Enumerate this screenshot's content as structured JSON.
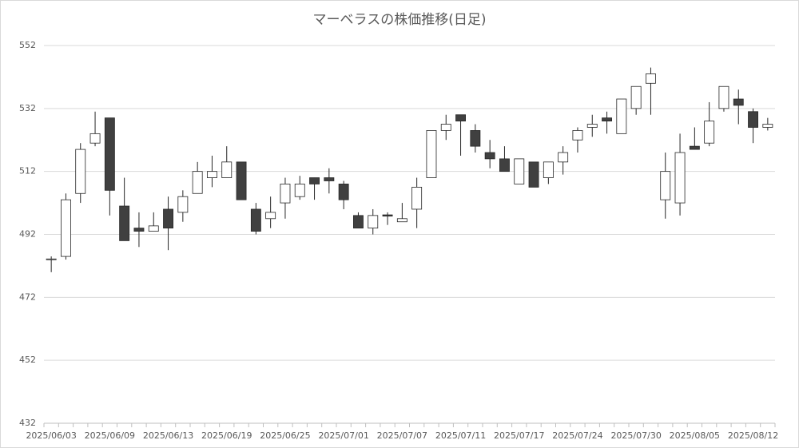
{
  "chart_data": {
    "type": "candlestick",
    "title": "マーベラスの株価推移(日足)",
    "categories": [
      "2025/06/03",
      null,
      null,
      null,
      "2025/06/09",
      null,
      null,
      null,
      "2025/06/13",
      null,
      null,
      null,
      "2025/06/19",
      null,
      null,
      null,
      "2025/06/25",
      null,
      null,
      null,
      "2025/07/01",
      null,
      null,
      null,
      "2025/07/07",
      null,
      null,
      null,
      "2025/07/11",
      null,
      null,
      null,
      "2025/07/17",
      null,
      null,
      null,
      "2025/07/24",
      null,
      null,
      null,
      "2025/07/30",
      null,
      null,
      null,
      "2025/08/05",
      null,
      null,
      null,
      "2025/08/12",
      null
    ],
    "open": [
      484,
      485,
      505,
      521,
      529,
      501,
      494,
      493,
      500,
      499,
      505,
      510,
      510,
      515,
      500,
      497,
      502,
      504,
      510,
      510,
      508,
      498,
      494,
      498.2,
      496,
      500,
      510,
      525,
      530,
      525,
      518,
      516,
      508,
      515,
      510,
      515,
      522,
      526,
      529,
      524,
      532,
      540,
      503,
      502,
      520,
      521,
      532,
      535,
      531,
      526
    ],
    "high": [
      485,
      505,
      521,
      531,
      529,
      510,
      499,
      499,
      504,
      506,
      515,
      517,
      520,
      515,
      502,
      504,
      510,
      510.6,
      510,
      513,
      509,
      499,
      500,
      499,
      502,
      510,
      525,
      530,
      530,
      527,
      522,
      520,
      516,
      515,
      515,
      520,
      526,
      530,
      531,
      535,
      539,
      545,
      518,
      524,
      526,
      534,
      539,
      538,
      532,
      529
    ],
    "low": [
      480,
      484,
      502,
      520,
      498,
      490,
      488,
      493,
      487,
      496,
      505,
      507,
      510,
      503,
      492,
      494,
      497,
      503,
      503,
      505,
      500,
      494,
      492,
      495,
      496,
      494,
      510,
      522,
      517,
      518,
      513,
      512,
      508,
      507,
      508,
      511,
      518,
      523,
      524,
      524,
      530,
      530,
      497,
      498,
      519,
      520,
      531,
      527,
      521,
      525
    ],
    "close": [
      484.2,
      503,
      519,
      524,
      506,
      490,
      493,
      494.7,
      494,
      504,
      512,
      512,
      515,
      503,
      493,
      499,
      508,
      508,
      508,
      509,
      503,
      494,
      498,
      497.8,
      497,
      507,
      525,
      527,
      528,
      520,
      516,
      512,
      516,
      507,
      515,
      518,
      525,
      527,
      528,
      535,
      539,
      543,
      512,
      518,
      519,
      528,
      539,
      533,
      526,
      527
    ],
    "up_color": "#ffffff",
    "down_color": "#404040",
    "ylim": [
      432,
      552
    ],
    "yticks": [
      432,
      452,
      472,
      492,
      512,
      532,
      552
    ],
    "grid": true
  }
}
